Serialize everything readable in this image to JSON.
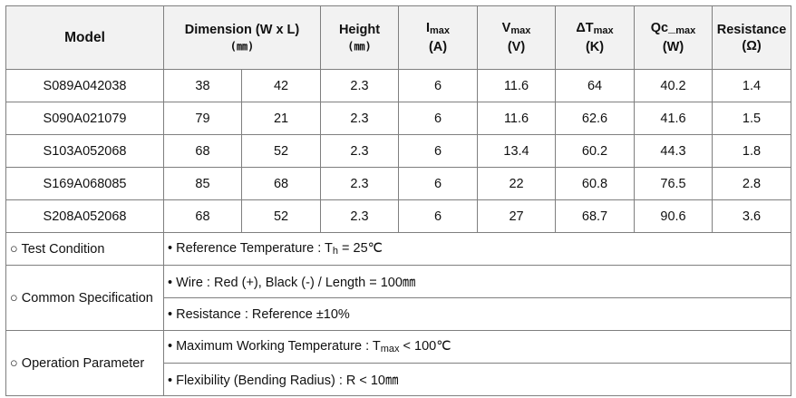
{
  "headers": {
    "model": "Model",
    "dimension": "Dimension (W x L)",
    "dimension_unit": "(㎜)",
    "height": "Height",
    "height_unit": "(㎜)",
    "imax": "I",
    "imax_sub": "max",
    "imax_unit": "(A)",
    "vmax": "V",
    "vmax_sub": "max",
    "vmax_unit": "(V)",
    "dt": "ΔT",
    "dt_sub": "max",
    "dt_unit": "(K)",
    "qc": "Qc_",
    "qc_sub": "max",
    "qc_unit": "(W)",
    "resistance": "Resistance",
    "resistance_unit": "(Ω)"
  },
  "rows": [
    {
      "model": "S089A042038",
      "w": "38",
      "l": "42",
      "height": "2.3",
      "imax": "6",
      "vmax": "11.6",
      "dt": "64",
      "qc": "40.2",
      "res": "1.4"
    },
    {
      "model": "S090A021079",
      "w": "79",
      "l": "21",
      "height": "2.3",
      "imax": "6",
      "vmax": "11.6",
      "dt": "62.6",
      "qc": "41.6",
      "res": "1.5"
    },
    {
      "model": "S103A052068",
      "w": "68",
      "l": "52",
      "height": "2.3",
      "imax": "6",
      "vmax": "13.4",
      "dt": "60.2",
      "qc": "44.3",
      "res": "1.8"
    },
    {
      "model": "S169A068085",
      "w": "85",
      "l": "68",
      "height": "2.3",
      "imax": "6",
      "vmax": "22",
      "dt": "60.8",
      "qc": "76.5",
      "res": "2.8"
    },
    {
      "model": "S208A052068",
      "w": "68",
      "l": "52",
      "height": "2.3",
      "imax": "6",
      "vmax": "27",
      "dt": "68.7",
      "qc": "90.6",
      "res": "3.6"
    }
  ],
  "test_condition": {
    "label": "○ Test Condition",
    "prefix": "• Reference Temperature : T",
    "sub": "h",
    "suffix": " = 25℃"
  },
  "common_spec": {
    "label": "○ Common Specification",
    "line1": "• Wire : Red (+), Black (-) / Length = 100㎜",
    "line2": "• Resistance : Reference ±10%"
  },
  "operation": {
    "label": "○ Operation Parameter",
    "line1_prefix": "• Maximum Working Temperature : T",
    "line1_sub": "max",
    "line1_suffix": " < 100℃",
    "line2": "• Flexibility (Bending Radius) : R < 10㎜"
  }
}
